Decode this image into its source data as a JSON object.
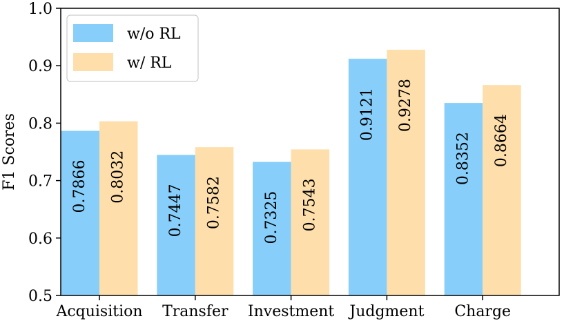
{
  "chart_data": {
    "type": "bar",
    "title": "",
    "xlabel": "",
    "ylabel": "F1 Scores",
    "ylim": [
      0.5,
      1.0
    ],
    "yticks": [
      "0.5",
      "0.6",
      "0.7",
      "0.8",
      "0.9",
      "1.0"
    ],
    "categories": [
      "Acquisition",
      "Transfer",
      "Investment",
      "Judgment",
      "Charge"
    ],
    "series": [
      {
        "name": "w/o RL",
        "color": "#87cefa",
        "values": [
          0.7866,
          0.7447,
          0.7325,
          0.9121,
          0.8352
        ],
        "labels": [
          "0.7866",
          "0.7447",
          "0.7325",
          "0.9121",
          "0.8352"
        ]
      },
      {
        "name": "w/ RL",
        "color": "#fedfab",
        "values": [
          0.8032,
          0.7582,
          0.7543,
          0.9278,
          0.8664
        ],
        "labels": [
          "0.8032",
          "0.7582",
          "0.7543",
          "0.9278",
          "0.8664"
        ]
      }
    ],
    "legend": "top-left",
    "grid": false
  }
}
